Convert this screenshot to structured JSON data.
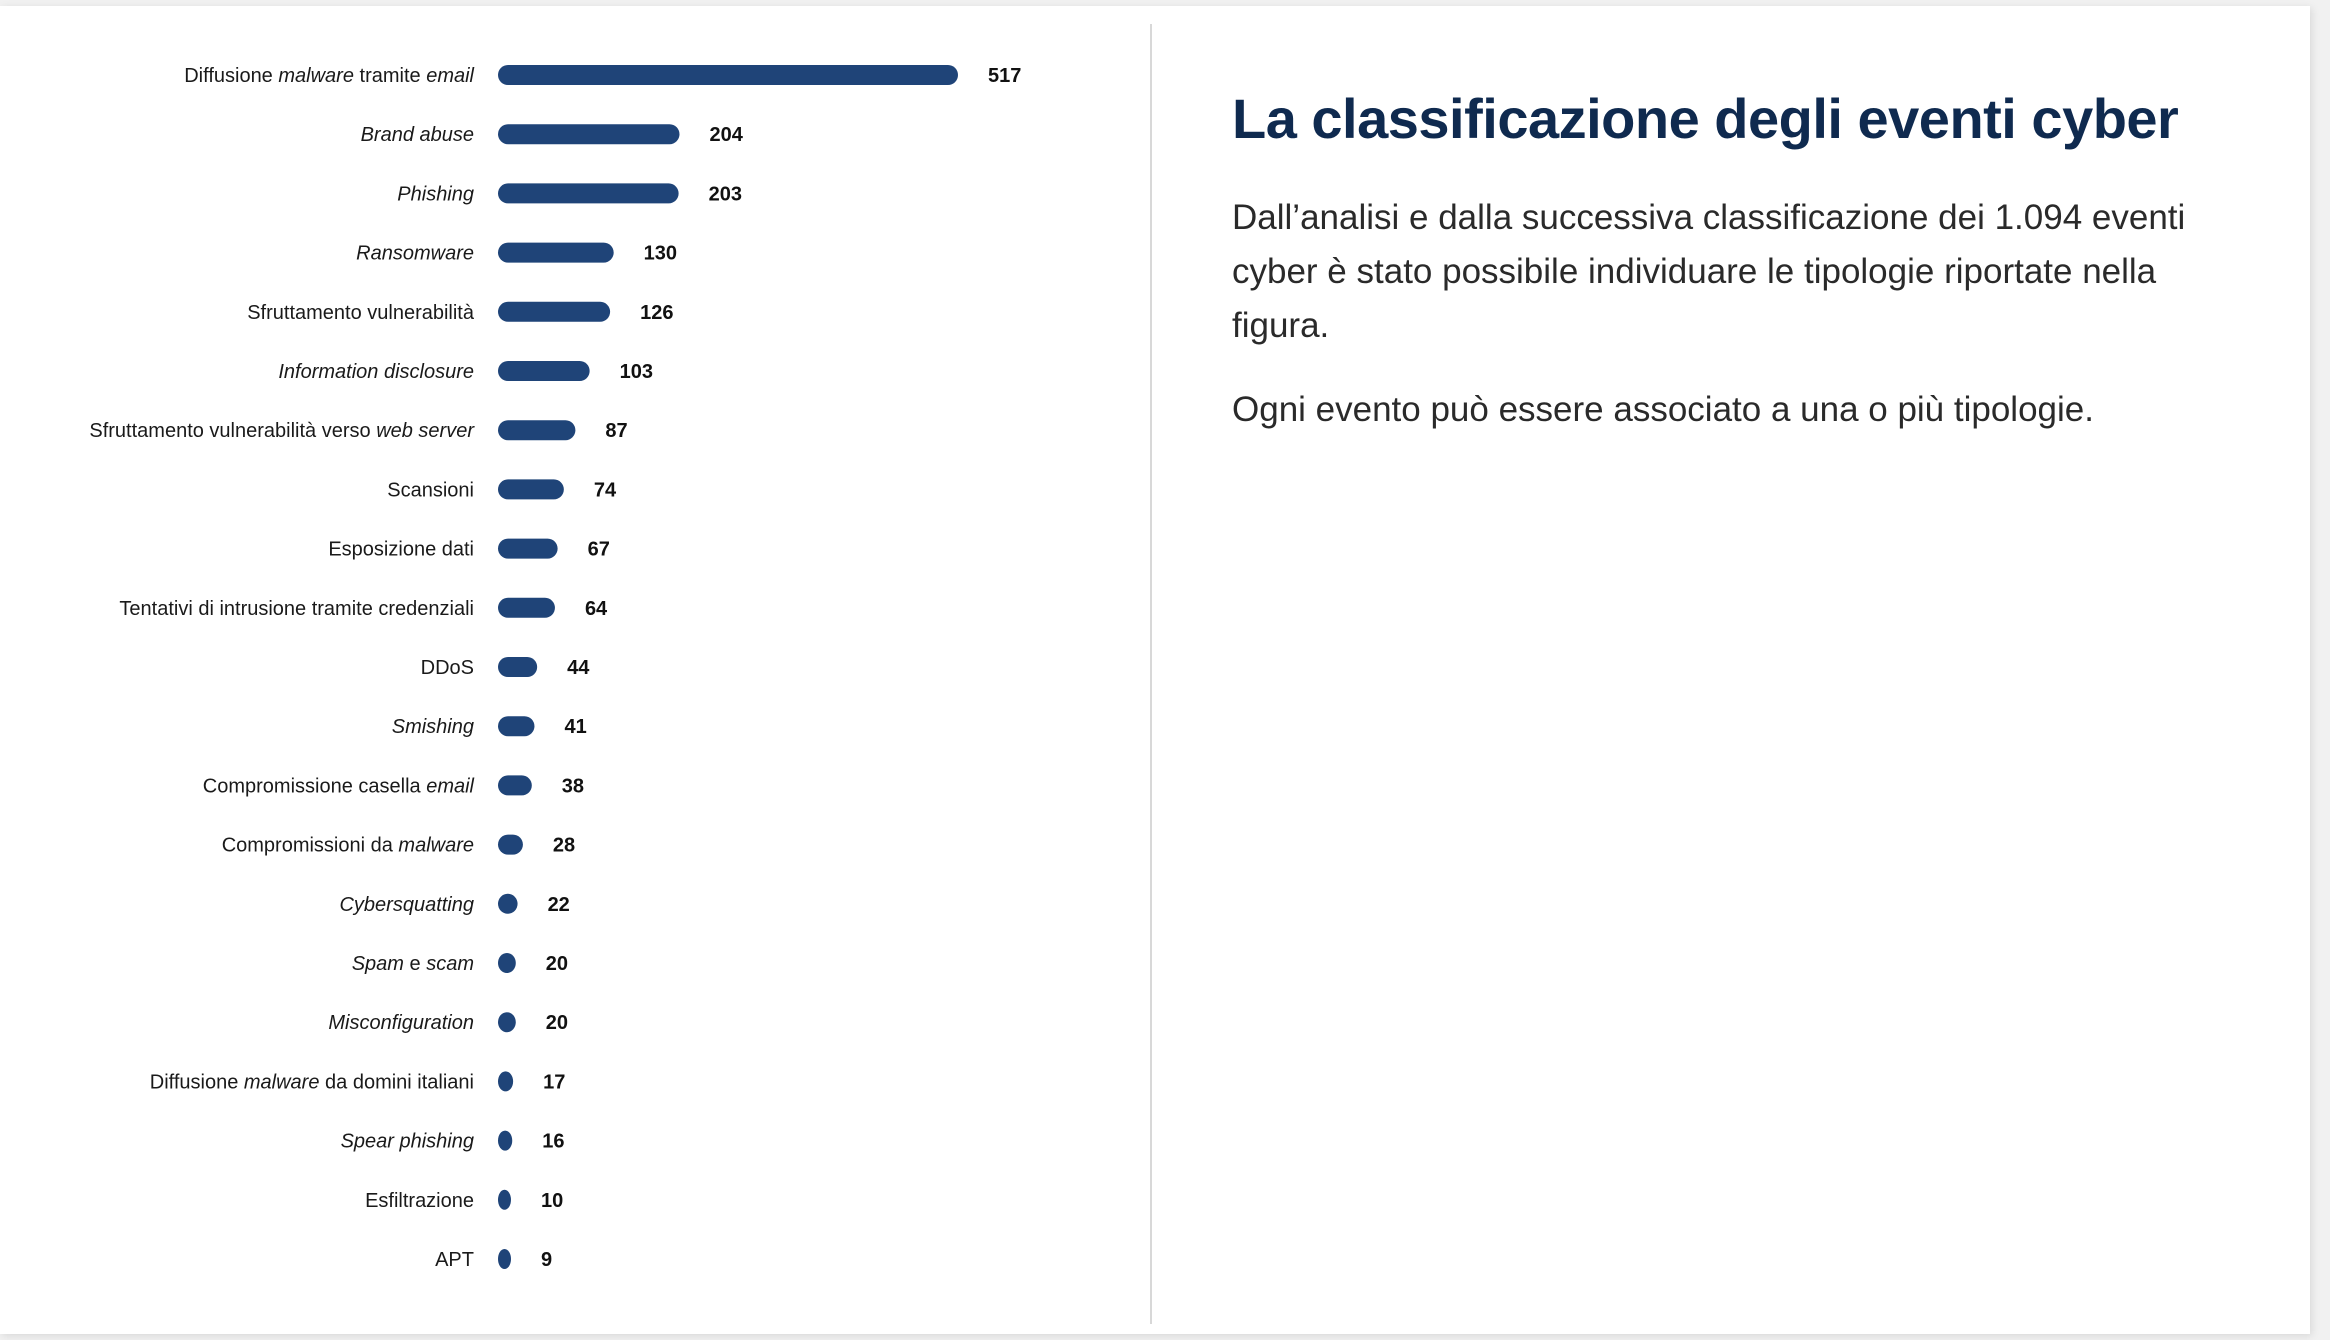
{
  "title": "La classificazione degli eventi cyber",
  "paragraphs": [
    "Dall’analisi e dalla successiva classificazione dei 1.094 eventi cyber è stato possibile individuare le tipologie riportate nella figura.",
    "Ogni evento può essere associato a una o più tipologie."
  ],
  "colors": {
    "bar": "#1f4478",
    "title": "#0f2a4f"
  },
  "chart_data": {
    "type": "bar",
    "orientation": "horizontal",
    "categories": [
      "Diffusione malware tramite email",
      "Brand abuse",
      "Phishing",
      "Ransomware",
      "Sfruttamento vulnerabilità",
      "Information disclosure",
      "Sfruttamento vulnerabilità verso web server",
      "Scansioni",
      "Esposizione dati",
      "Tentativi di intrusione tramite credenziali",
      "DDoS",
      "Smishing",
      "Compromissione casella email",
      "Compromissioni da malware",
      "Cybersquatting",
      "Spam e scam",
      "Misconfiguration",
      "Diffusione malware da domini italiani",
      "Spear phishing",
      "Esfiltrazione",
      "APT"
    ],
    "label_parts": [
      [
        [
          "Diffusione ",
          false
        ],
        [
          "malware",
          true
        ],
        [
          " tramite ",
          false
        ],
        [
          "email",
          true
        ]
      ],
      [
        [
          "Brand abuse",
          true
        ]
      ],
      [
        [
          "Phishing",
          true
        ]
      ],
      [
        [
          "Ransomware",
          true
        ]
      ],
      [
        [
          "Sfruttamento vulnerabilità",
          false
        ]
      ],
      [
        [
          "Information disclosure",
          true
        ]
      ],
      [
        [
          "Sfruttamento vulnerabilità verso ",
          false
        ],
        [
          "web server",
          true
        ]
      ],
      [
        [
          "Scansioni",
          false
        ]
      ],
      [
        [
          "Esposizione dati",
          false
        ]
      ],
      [
        [
          "Tentativi di intrusione tramite credenziali",
          false
        ]
      ],
      [
        [
          "DDoS",
          false
        ]
      ],
      [
        [
          "Smishing",
          true
        ]
      ],
      [
        [
          "Compromissione casella ",
          false
        ],
        [
          "email",
          true
        ]
      ],
      [
        [
          "Compromissioni da ",
          false
        ],
        [
          "malware",
          true
        ]
      ],
      [
        [
          "Cybersquatting",
          true
        ]
      ],
      [
        [
          "Spam",
          true
        ],
        [
          " e ",
          false
        ],
        [
          "scam",
          true
        ]
      ],
      [
        [
          "Misconfiguration",
          true
        ]
      ],
      [
        [
          "Diffusione ",
          false
        ],
        [
          "malware",
          true
        ],
        [
          " da domini italiani",
          false
        ]
      ],
      [
        [
          "Spear phishing",
          true
        ]
      ],
      [
        [
          "Esfiltrazione",
          false
        ]
      ],
      [
        [
          "APT",
          false
        ]
      ]
    ],
    "values": [
      517,
      204,
      203,
      130,
      126,
      103,
      87,
      74,
      67,
      64,
      44,
      41,
      38,
      28,
      22,
      20,
      20,
      17,
      16,
      10,
      9
    ],
    "xlim": [
      0,
      517
    ],
    "grid": false,
    "legend": "none"
  }
}
